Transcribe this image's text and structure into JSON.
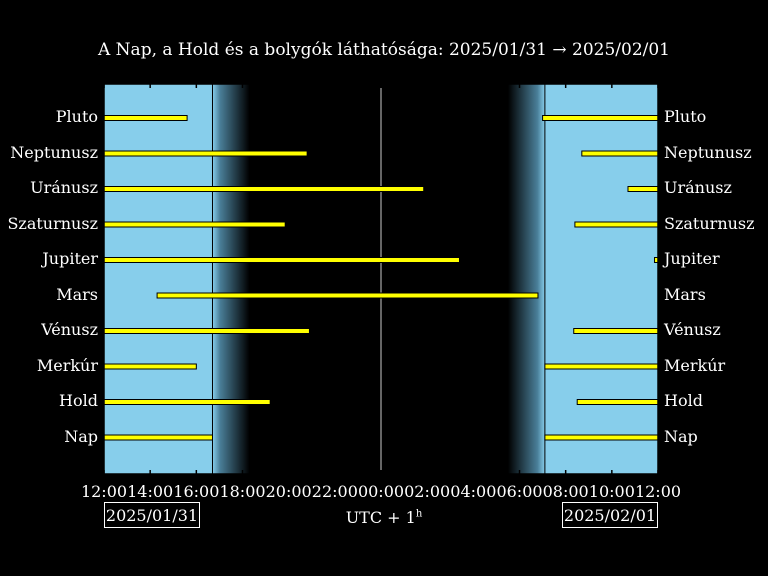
{
  "chart_data": {
    "type": "timeline",
    "title": "A Nap, a Hold és a bolygók láthatósága: 2025/01/31 → 2025/02/01",
    "x_range_hours": [
      0,
      24
    ],
    "x_ticks": [
      "12:00",
      "14:00",
      "16:00",
      "18:00",
      "20:00",
      "22:00",
      "00:00",
      "02:00",
      "04:00",
      "06:00",
      "08:00",
      "10:00",
      "12:00"
    ],
    "start_date": "2025/01/31",
    "end_date": "2025/02/01",
    "xlabel_main": "UTC + 1",
    "xlabel_sup": "h",
    "sunset_hour": 4.7,
    "twilight_end_hour": 6.3,
    "twilight_start_hour": 17.5,
    "sunrise_hour": 19.1,
    "midnight_hour": 12,
    "colors": {
      "day": "#87ceeb",
      "night": "#000000",
      "bar": "#ffff00"
    },
    "bodies": [
      {
        "name": "Pluto",
        "intervals": [
          [
            0,
            3.6
          ],
          [
            19.0,
            24
          ]
        ]
      },
      {
        "name": "Neptunusz",
        "intervals": [
          [
            0,
            8.8
          ],
          [
            20.7,
            24
          ]
        ]
      },
      {
        "name": "Uránusz",
        "intervals": [
          [
            0,
            13.85
          ],
          [
            22.7,
            24
          ]
        ]
      },
      {
        "name": "Szaturnusz",
        "intervals": [
          [
            0,
            7.85
          ],
          [
            20.4,
            24
          ]
        ]
      },
      {
        "name": "Jupiter",
        "intervals": [
          [
            0,
            15.4
          ],
          [
            23.85,
            24
          ]
        ]
      },
      {
        "name": "Mars",
        "intervals": [
          [
            2.3,
            18.8
          ]
        ]
      },
      {
        "name": "Vénusz",
        "intervals": [
          [
            0,
            8.9
          ],
          [
            20.35,
            24
          ]
        ]
      },
      {
        "name": "Merkúr",
        "intervals": [
          [
            0,
            4.0
          ],
          [
            19.1,
            24
          ]
        ]
      },
      {
        "name": "Hold",
        "intervals": [
          [
            0,
            7.2
          ],
          [
            20.5,
            24
          ]
        ]
      },
      {
        "name": "Nap",
        "intervals": [
          [
            0,
            4.7
          ],
          [
            19.1,
            24
          ]
        ]
      }
    ]
  }
}
